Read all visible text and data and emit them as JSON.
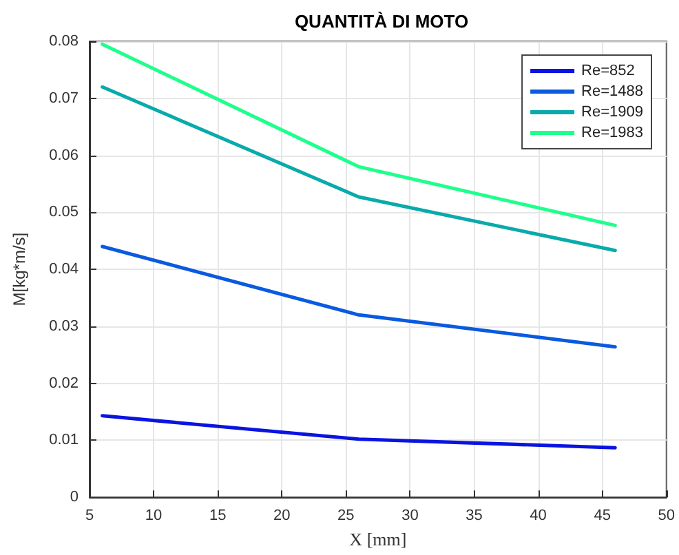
{
  "chart_data": {
    "type": "line",
    "title": "QUANTITÀ DI MOTO",
    "xlabel": "X [mm]",
    "ylabel": "M[kg*m/s]",
    "x": [
      6,
      26,
      46
    ],
    "series": [
      {
        "name": "Re=852",
        "color": "#0a14e0",
        "values": [
          0.0143,
          0.0102,
          0.0087
        ]
      },
      {
        "name": "Re=1488",
        "color": "#0a5ae0",
        "values": [
          0.044,
          0.032,
          0.0264
        ]
      },
      {
        "name": "Re=1909",
        "color": "#0aaaaa",
        "values": [
          0.072,
          0.0527,
          0.0433
        ]
      },
      {
        "name": "Re=1983",
        "color": "#1eff8c",
        "values": [
          0.0795,
          0.058,
          0.0477
        ]
      }
    ],
    "xlim": [
      5,
      50
    ],
    "xticks": [
      5,
      10,
      15,
      20,
      25,
      30,
      35,
      40,
      45,
      50
    ],
    "ylim": [
      0,
      0.08
    ],
    "yticks": [
      0,
      0.01,
      0.02,
      0.03,
      0.04,
      0.05,
      0.06,
      0.07,
      0.08
    ],
    "grid": true,
    "legend": "top right",
    "line_style": "solid",
    "marker": "none"
  }
}
